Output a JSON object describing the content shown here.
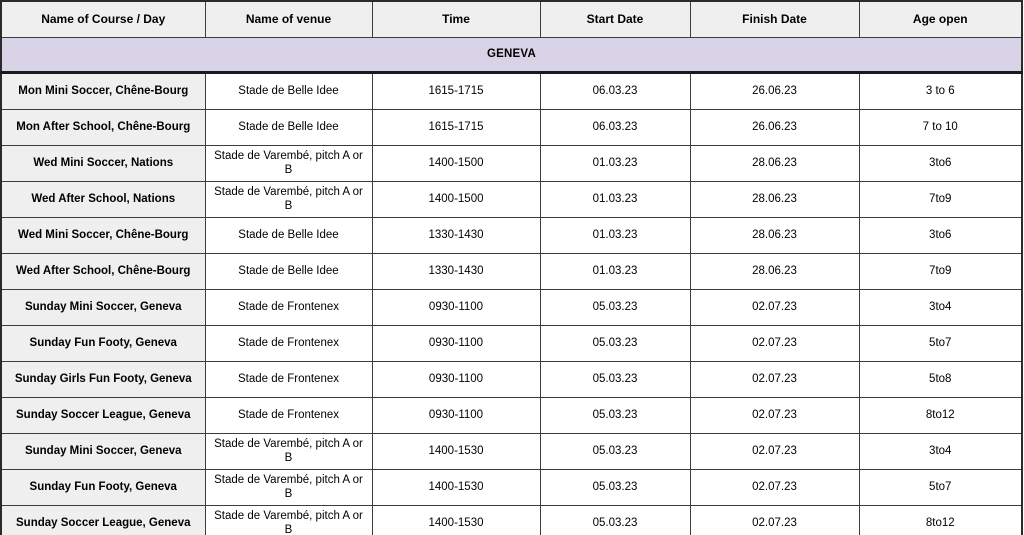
{
  "table": {
    "columns": [
      "Name of Course / Day",
      "Name of venue",
      "Time",
      "Start Date",
      "Finish Date",
      "Age open"
    ],
    "section_title": "GENEVA",
    "rows": [
      {
        "course": "Mon Mini Soccer, Chêne-Bourg",
        "venue": "Stade de Belle Idee",
        "time": "1615-1715",
        "start": "06.03.23",
        "finish": "26.06.23",
        "age": "3 to 6"
      },
      {
        "course": "Mon After School, Chêne-Bourg",
        "venue": "Stade de Belle Idee",
        "time": "1615-1715",
        "start": "06.03.23",
        "finish": "26.06.23",
        "age": "7 to 10"
      },
      {
        "course": "Wed Mini Soccer, Nations",
        "venue": "Stade de Varembé, pitch A or B",
        "time": "1400-1500",
        "start": "01.03.23",
        "finish": "28.06.23",
        "age": "3to6"
      },
      {
        "course": "Wed After School, Nations",
        "venue": "Stade de Varembé, pitch A or B",
        "time": "1400-1500",
        "start": "01.03.23",
        "finish": "28.06.23",
        "age": "7to9"
      },
      {
        "course": "Wed Mini Soccer, Chêne-Bourg",
        "venue": "Stade de Belle Idee",
        "time": "1330-1430",
        "start": "01.03.23",
        "finish": "28.06.23",
        "age": "3to6"
      },
      {
        "course": "Wed After School, Chêne-Bourg",
        "venue": "Stade de Belle Idee",
        "time": "1330-1430",
        "start": "01.03.23",
        "finish": "28.06.23",
        "age": "7to9"
      },
      {
        "course": "Sunday Mini Soccer, Geneva",
        "venue": "Stade de Frontenex",
        "time": "0930-1100",
        "start": "05.03.23",
        "finish": "02.07.23",
        "age": "3to4"
      },
      {
        "course": "Sunday Fun Footy, Geneva",
        "venue": "Stade de Frontenex",
        "time": "0930-1100",
        "start": "05.03.23",
        "finish": "02.07.23",
        "age": "5to7"
      },
      {
        "course": "Sunday Girls Fun Footy, Geneva",
        "venue": "Stade de Frontenex",
        "time": "0930-1100",
        "start": "05.03.23",
        "finish": "02.07.23",
        "age": "5to8"
      },
      {
        "course": "Sunday Soccer League, Geneva",
        "venue": "Stade de Frontenex",
        "time": "0930-1100",
        "start": "05.03.23",
        "finish": "02.07.23",
        "age": "8to12"
      },
      {
        "course": "Sunday Mini Soccer, Geneva",
        "venue": "Stade de Varembé, pitch A or B",
        "time": "1400-1530",
        "start": "05.03.23",
        "finish": "02.07.23",
        "age": "3to4"
      },
      {
        "course": "Sunday Fun Footy, Geneva",
        "venue": "Stade de Varembé, pitch A or B",
        "time": "1400-1530",
        "start": "05.03.23",
        "finish": "02.07.23",
        "age": "5to7"
      },
      {
        "course": "Sunday Soccer League, Geneva",
        "venue": "Stade de Varembé, pitch A or B",
        "time": "1400-1530",
        "start": "05.03.23",
        "finish": "02.07.23",
        "age": "8to12"
      }
    ]
  },
  "colors": {
    "header_bg": "#efefef",
    "section_bg": "#d9d3e8",
    "row_label_bg": "#efefef",
    "border": "#3d3d3d",
    "text": "#000000"
  }
}
